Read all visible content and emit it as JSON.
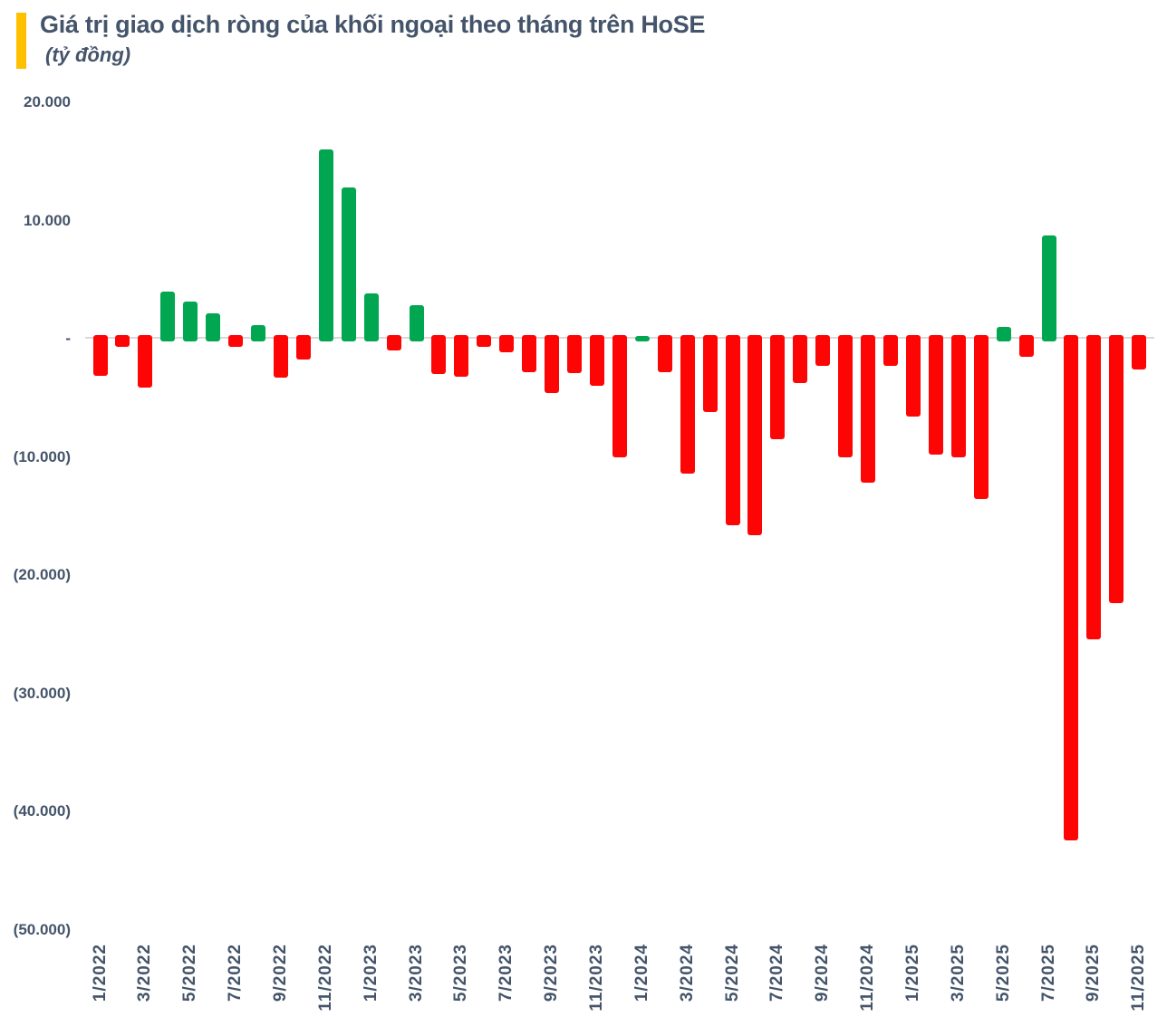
{
  "header": {
    "title": "Giá trị giao dịch ròng của khối ngoại theo tháng trên HoSE",
    "subtitle": "(tỷ đồng)",
    "accent_color": "#FFC000",
    "title_color": "#44546A"
  },
  "chart_data": {
    "type": "bar",
    "title": "Giá trị giao dịch ròng của khối ngoại theo tháng trên HoSE",
    "unit_label": "(tỷ đồng)",
    "grid": "off",
    "legend": "none",
    "ylim": [
      -50000,
      20000
    ],
    "positive_color": "#00A650",
    "negative_color": "#FE0505",
    "axis_line_color": "#D9D9D9",
    "label_color": "#44546A",
    "categories": [
      "1/2022",
      "2/2022",
      "3/2022",
      "4/2022",
      "5/2022",
      "6/2022",
      "7/2022",
      "8/2022",
      "9/2022",
      "10/2022",
      "11/2022",
      "12/2022",
      "1/2023",
      "2/2023",
      "3/2023",
      "4/2023",
      "5/2023",
      "6/2023",
      "7/2023",
      "8/2023",
      "9/2023",
      "10/2023",
      "11/2023",
      "12/2023",
      "1/2024",
      "2/2024",
      "3/2024",
      "4/2024",
      "5/2024",
      "6/2024",
      "7/2024",
      "8/2024",
      "9/2024",
      "10/2024",
      "11/2024",
      "12/2024",
      "1/2025",
      "2/2025",
      "3/2025",
      "4/2025",
      "5/2025",
      "6/2025",
      "7/2025",
      "8/2025",
      "9/2025",
      "10/2025",
      "11/2025"
    ],
    "values": [
      -3150,
      -700,
      -4150,
      4000,
      3150,
      2150,
      -700,
      1150,
      -3300,
      -1800,
      16000,
      12800,
      3850,
      -1000,
      2850,
      -3000,
      -3200,
      -700,
      -1150,
      -2850,
      -4600,
      -2900,
      -4000,
      -10000,
      250,
      -2850,
      -11400,
      -6200,
      -15800,
      -16600,
      -8500,
      -3750,
      -2300,
      -10000,
      -12200,
      -2300,
      -6600,
      -9800,
      -10000,
      -13600,
      1000,
      -1550,
      8750,
      -42450,
      -25450,
      -22400,
      -2600
    ],
    "y_ticks": [
      {
        "label": "20.000",
        "value": 20000
      },
      {
        "label": "10.000",
        "value": 10000
      },
      {
        "label": "-",
        "value": 0
      },
      {
        "label": "(10.000)",
        "value": -10000
      },
      {
        "label": "(20.000)",
        "value": -20000
      },
      {
        "label": "(30.000)",
        "value": -30000
      },
      {
        "label": "(40.000)",
        "value": -40000
      },
      {
        "label": "(50.000)",
        "value": -50000
      }
    ],
    "x_tick_labels": [
      "1/2022",
      "3/2022",
      "5/2022",
      "7/2022",
      "9/2022",
      "11/2022",
      "1/2023",
      "3/2023",
      "5/2023",
      "7/2023",
      "9/2023",
      "11/2023",
      "1/2024",
      "3/2024",
      "5/2024",
      "7/2024",
      "9/2024",
      "11/2024",
      "1/2025",
      "3/2025",
      "5/2025",
      "7/2025",
      "9/2025",
      "11/2025"
    ]
  }
}
